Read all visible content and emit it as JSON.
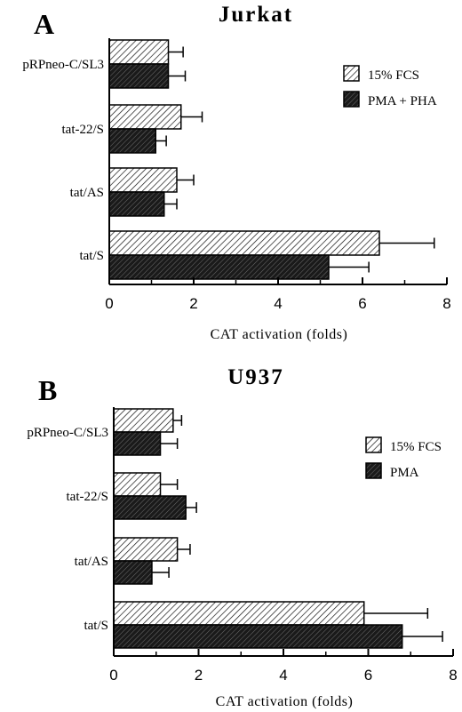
{
  "chart_data": [
    {
      "type": "bar",
      "panel_letter": "A",
      "title": "Jurkat",
      "xlabel": "CAT activation (folds)",
      "xlim": [
        0,
        8
      ],
      "xticks": [
        "0",
        "2",
        "4",
        "6",
        "8"
      ],
      "categories": [
        "pRPneo-C/SL3",
        "tat-22/S",
        "tat/AS",
        "tat/S"
      ],
      "series": [
        {
          "name": "15% FCS",
          "values": [
            1.4,
            1.7,
            1.6,
            6.4
          ],
          "errors": [
            0.35,
            0.5,
            0.4,
            1.3
          ],
          "pattern": "light-hatch"
        },
        {
          "name": "PMA + PHA",
          "values": [
            1.4,
            1.1,
            1.3,
            5.2
          ],
          "errors": [
            0.4,
            0.25,
            0.3,
            0.95
          ],
          "pattern": "dark-hatch"
        }
      ],
      "legend_position": "top-right"
    },
    {
      "type": "bar",
      "panel_letter": "B",
      "title": "U937",
      "xlabel": "CAT activation (folds)",
      "xlim": [
        0,
        8
      ],
      "xticks": [
        "0",
        "2",
        "4",
        "6",
        "8"
      ],
      "categories": [
        "pRPneo-C/SL3",
        "tat-22/S",
        "tat/AS",
        "tat/S"
      ],
      "series": [
        {
          "name": "15% FCS",
          "values": [
            1.4,
            1.1,
            1.5,
            5.9
          ],
          "errors": [
            0.2,
            0.4,
            0.3,
            1.5
          ],
          "pattern": "light-hatch"
        },
        {
          "name": "PMA",
          "values": [
            1.1,
            1.7,
            0.9,
            6.8
          ],
          "errors": [
            0.4,
            0.25,
            0.4,
            0.95
          ],
          "pattern": "dark-hatch"
        }
      ],
      "legend_position": "top-right"
    }
  ]
}
